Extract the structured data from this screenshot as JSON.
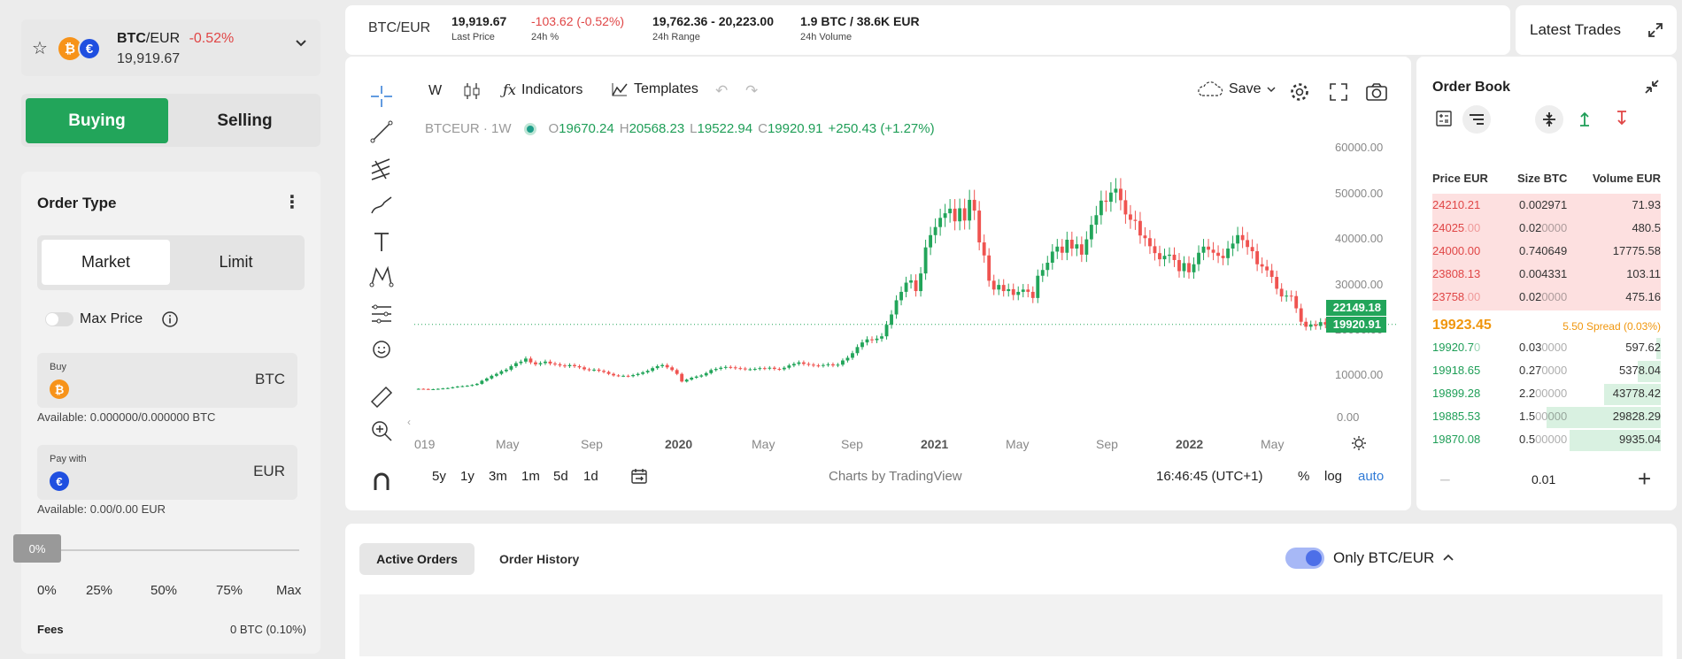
{
  "pair": {
    "base": "BTC",
    "quote": "/EUR",
    "change": "-0.52%",
    "price": "19,919.67"
  },
  "side": {
    "buying": "Buying",
    "selling": "Selling"
  },
  "order": {
    "title": "Order Type",
    "market": "Market",
    "limit": "Limit",
    "max_price": "Max Price",
    "buy_label": "Buy",
    "buy_asset": "BTC",
    "buy_available": "Available: 0.000000/0.000000 BTC",
    "pay_label": "Pay with",
    "pay_asset": "EUR",
    "pay_available": "Available: 0.00/0.00 EUR",
    "slider_value": "0%",
    "slider_marks": [
      "0%",
      "25%",
      "50%",
      "75%",
      "Max"
    ],
    "fees_label": "Fees",
    "fees_value": "0 BTC (0.10%)"
  },
  "header": {
    "pair": "BTC/EUR",
    "last_price": "19,919.67",
    "last_price_label": "Last Price",
    "change": "-103.62 (-0.52%)",
    "change_label": "24h %",
    "range": "19,762.36 - 20,223.00",
    "range_label": "24h Range",
    "volume": "1.9 BTC / 38.6K EUR",
    "volume_label": "24h Volume",
    "latest_trades": "Latest Trades"
  },
  "toolbar": {
    "interval": "W",
    "indicators": "Indicators",
    "templates": "Templates",
    "save": "Save"
  },
  "legend": {
    "symbol": "BTCEUR · 1W",
    "o_label": "O",
    "o": "19670.24",
    "h_label": "H",
    "h": "20568.23",
    "l_label": "L",
    "l": "19522.94",
    "c_label": "C",
    "c": "19920.91",
    "chg": "+250.43 (+1.27%)"
  },
  "footer": {
    "ranges": [
      "5y",
      "1y",
      "3m",
      "1m",
      "5d",
      "1d"
    ],
    "credit": "Charts by TradingView",
    "time": "16:46:45 (UTC+1)",
    "pct": "%",
    "log": "log",
    "auto": "auto"
  },
  "chart_data": {
    "type": "candlestick",
    "x_ticks": [
      "019",
      "May",
      "Sep",
      "2020",
      "May",
      "Sep",
      "2021",
      "May",
      "Sep",
      "2022",
      "May"
    ],
    "y_ticks": [
      "60000.00",
      "50000.00",
      "40000.00",
      "30000.00",
      "20000.00",
      "10000.00",
      "0.00"
    ],
    "ylim": [
      0,
      60000
    ],
    "price_tags": [
      "22149.18",
      "19920.91"
    ],
    "weekly_close": [
      3100,
      3050,
      3000,
      3000,
      3100,
      3200,
      3300,
      3500,
      3700,
      3800,
      3900,
      4100,
      4400,
      5200,
      5800,
      6500,
      7000,
      7700,
      8100,
      9000,
      9800,
      10200,
      11000,
      10000,
      9500,
      9800,
      10200,
      9700,
      9500,
      9200,
      9000,
      9300,
      9000,
      8700,
      8200,
      8000,
      8100,
      7800,
      7500,
      7000,
      6600,
      6500,
      6500,
      6400,
      6700,
      7000,
      7400,
      7800,
      8500,
      9000,
      9300,
      8700,
      8000,
      7000,
      5000,
      5500,
      6000,
      6300,
      6600,
      7200,
      8000,
      8300,
      8600,
      8800,
      8700,
      8500,
      8400,
      8200,
      8200,
      8300,
      8500,
      8400,
      8600,
      8300,
      8200,
      8600,
      9200,
      9600,
      10000,
      9600,
      9400,
      9200,
      9100,
      9300,
      9500,
      9200,
      9400,
      10500,
      11200,
      12400,
      14000,
      15200,
      16000,
      15800,
      16200,
      16800,
      19800,
      22500,
      26200,
      28400,
      30800,
      31400,
      28600,
      33200,
      40000,
      43200,
      45300,
      47700,
      48900,
      50100,
      46800,
      50200,
      47000,
      52400,
      49600,
      41300,
      37900,
      31300,
      29000,
      30200,
      28600,
      29100,
      27600,
      28400,
      29000,
      28400,
      26800,
      32600,
      34100,
      36000,
      38900,
      40200,
      38600,
      42000,
      39700,
      40800,
      38100,
      42100,
      45900,
      48400,
      52200,
      51900,
      54300,
      55300,
      52300,
      48600,
      47200,
      46900,
      43100,
      42400,
      40300,
      38500,
      36900,
      37800,
      38100,
      36700,
      33800,
      35900,
      33500,
      35600,
      38600,
      40200,
      39400,
      38600,
      37800,
      37200,
      39700,
      41000,
      43200,
      41900,
      40100,
      39000,
      35600,
      35000,
      34000,
      32300,
      29200,
      27200,
      27400,
      27300,
      24100,
      20600,
      19300,
      19900,
      19500,
      20500,
      19900
    ]
  },
  "orderbook": {
    "title": "Order Book",
    "headers": [
      "Price EUR",
      "Size BTC",
      "Volume EUR"
    ],
    "asks": [
      {
        "p": "24210.21",
        "s": "0.002971",
        "s_dim": "",
        "v": "71.93",
        "depth": 100
      },
      {
        "p": "24025",
        "p_dim": ".00",
        "s": "0.02",
        "s_dim": "0000",
        "v": "480.5",
        "depth": 100
      },
      {
        "p": "24000.00",
        "s": "0.740649",
        "s_dim": "",
        "v": "17775.58",
        "depth": 100
      },
      {
        "p": "23808.13",
        "s": "0.004331",
        "s_dim": "",
        "v": "103.11",
        "depth": 100
      },
      {
        "p": "23758",
        "p_dim": ".00",
        "s": "0.02",
        "s_dim": "0000",
        "v": "475.16",
        "depth": 100
      }
    ],
    "mid_price": "19923.45",
    "spread": "5.50 Spread (0.03%)",
    "bids": [
      {
        "p": "19920.7",
        "p_dim": "0",
        "s": "0.03",
        "s_dim": "0000",
        "v": "597.62",
        "depth": 2
      },
      {
        "p": "19918.65",
        "s": "0.27",
        "s_dim": "0000",
        "v": "5378.04",
        "depth": 10
      },
      {
        "p": "19899.28",
        "s": "2.2",
        "s_dim": "00000",
        "v": "43778.42",
        "depth": 25
      },
      {
        "p": "19885.53",
        "s": "1.5",
        "s_dim": "00000",
        "v": "29828.29",
        "depth": 50
      },
      {
        "p": "19870.08",
        "s": "0.5",
        "s_dim": "00000",
        "v": "9935.04",
        "depth": 40
      }
    ],
    "step": "0.01"
  },
  "orders": {
    "active": "Active Orders",
    "history": "Order History",
    "only_pair": "Only BTC/EUR"
  }
}
